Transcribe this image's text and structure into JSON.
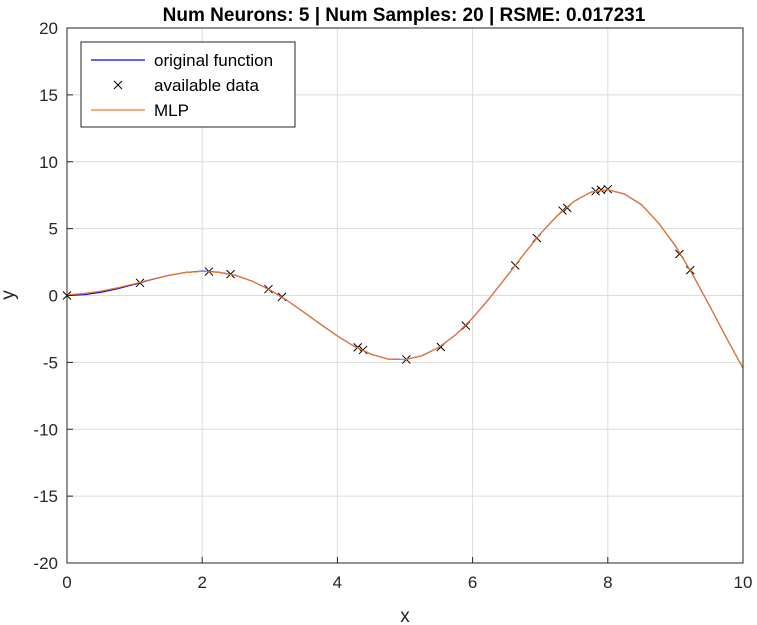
{
  "chart_data": {
    "type": "line",
    "title": "Num Neurons: 5 | Num Samples: 20 | RSME: 0.017231",
    "xlabel": "x",
    "ylabel": "y",
    "xlim": [
      0,
      10
    ],
    "ylim": [
      -20,
      20
    ],
    "xticks": [
      0,
      2,
      4,
      6,
      8,
      10
    ],
    "yticks": [
      -20,
      -15,
      -10,
      -5,
      0,
      5,
      10,
      15,
      20
    ],
    "grid": true,
    "legend_position": "top-left",
    "series": [
      {
        "name": "original function",
        "style": "line",
        "color": "#0000ff",
        "x": [
          0,
          0.25,
          0.5,
          0.75,
          1.0,
          1.25,
          1.5,
          1.75,
          2.0,
          2.25,
          2.5,
          2.75,
          3.0,
          3.25,
          3.5,
          3.75,
          4.0,
          4.25,
          4.5,
          4.75,
          5.0,
          5.25,
          5.5,
          5.75,
          6.0,
          6.25,
          6.5,
          6.75,
          7.0,
          7.25,
          7.5,
          7.75,
          8.0,
          8.25,
          8.5,
          8.75,
          9.0,
          9.25,
          9.5,
          9.75,
          10.0
        ],
        "y": [
          0,
          0.06,
          0.24,
          0.51,
          0.84,
          1.19,
          1.5,
          1.72,
          1.82,
          1.74,
          1.5,
          1.05,
          0.42,
          -0.35,
          -1.23,
          -2.15,
          -3.03,
          -3.8,
          -4.4,
          -4.75,
          -4.79,
          -4.51,
          -3.88,
          -2.94,
          -1.68,
          -0.21,
          1.4,
          3.04,
          4.6,
          5.96,
          7.04,
          7.73,
          7.91,
          7.58,
          6.78,
          5.42,
          3.71,
          1.61,
          -0.72,
          -3.12,
          -5.44
        ]
      },
      {
        "name": "available data",
        "style": "marker",
        "marker": "x",
        "color": "#000000",
        "x": [
          0.0,
          1.08,
          2.1,
          2.42,
          2.98,
          3.18,
          4.3,
          4.38,
          5.02,
          5.53,
          5.9,
          6.63,
          6.95,
          7.33,
          7.4,
          7.82,
          7.9,
          8.0,
          9.06,
          9.22
        ],
        "y": [
          0.0,
          0.95,
          1.79,
          1.6,
          0.48,
          -0.1,
          -3.88,
          -4.07,
          -4.78,
          -3.85,
          -2.25,
          2.25,
          4.3,
          6.35,
          6.55,
          7.8,
          7.9,
          7.95,
          3.1,
          1.9
        ]
      },
      {
        "name": "MLP",
        "style": "line",
        "color": "#f07a20",
        "x": [
          0,
          0.25,
          0.5,
          0.75,
          1.0,
          1.25,
          1.5,
          1.75,
          2.0,
          2.25,
          2.5,
          2.75,
          3.0,
          3.25,
          3.5,
          3.75,
          4.0,
          4.25,
          4.5,
          4.75,
          5.0,
          5.25,
          5.5,
          5.75,
          6.0,
          6.25,
          6.5,
          6.75,
          7.0,
          7.25,
          7.5,
          7.75,
          8.0,
          8.25,
          8.5,
          8.75,
          9.0,
          9.25,
          9.5,
          9.75,
          10.0
        ],
        "y": [
          0.05,
          0.15,
          0.33,
          0.58,
          0.88,
          1.21,
          1.51,
          1.72,
          1.81,
          1.73,
          1.49,
          1.05,
          0.42,
          -0.35,
          -1.23,
          -2.15,
          -3.03,
          -3.8,
          -4.4,
          -4.75,
          -4.79,
          -4.51,
          -3.88,
          -2.94,
          -1.68,
          -0.21,
          1.4,
          3.04,
          4.6,
          5.96,
          7.04,
          7.73,
          7.91,
          7.58,
          6.78,
          5.42,
          3.71,
          1.61,
          -0.72,
          -3.12,
          -5.44
        ]
      }
    ]
  }
}
